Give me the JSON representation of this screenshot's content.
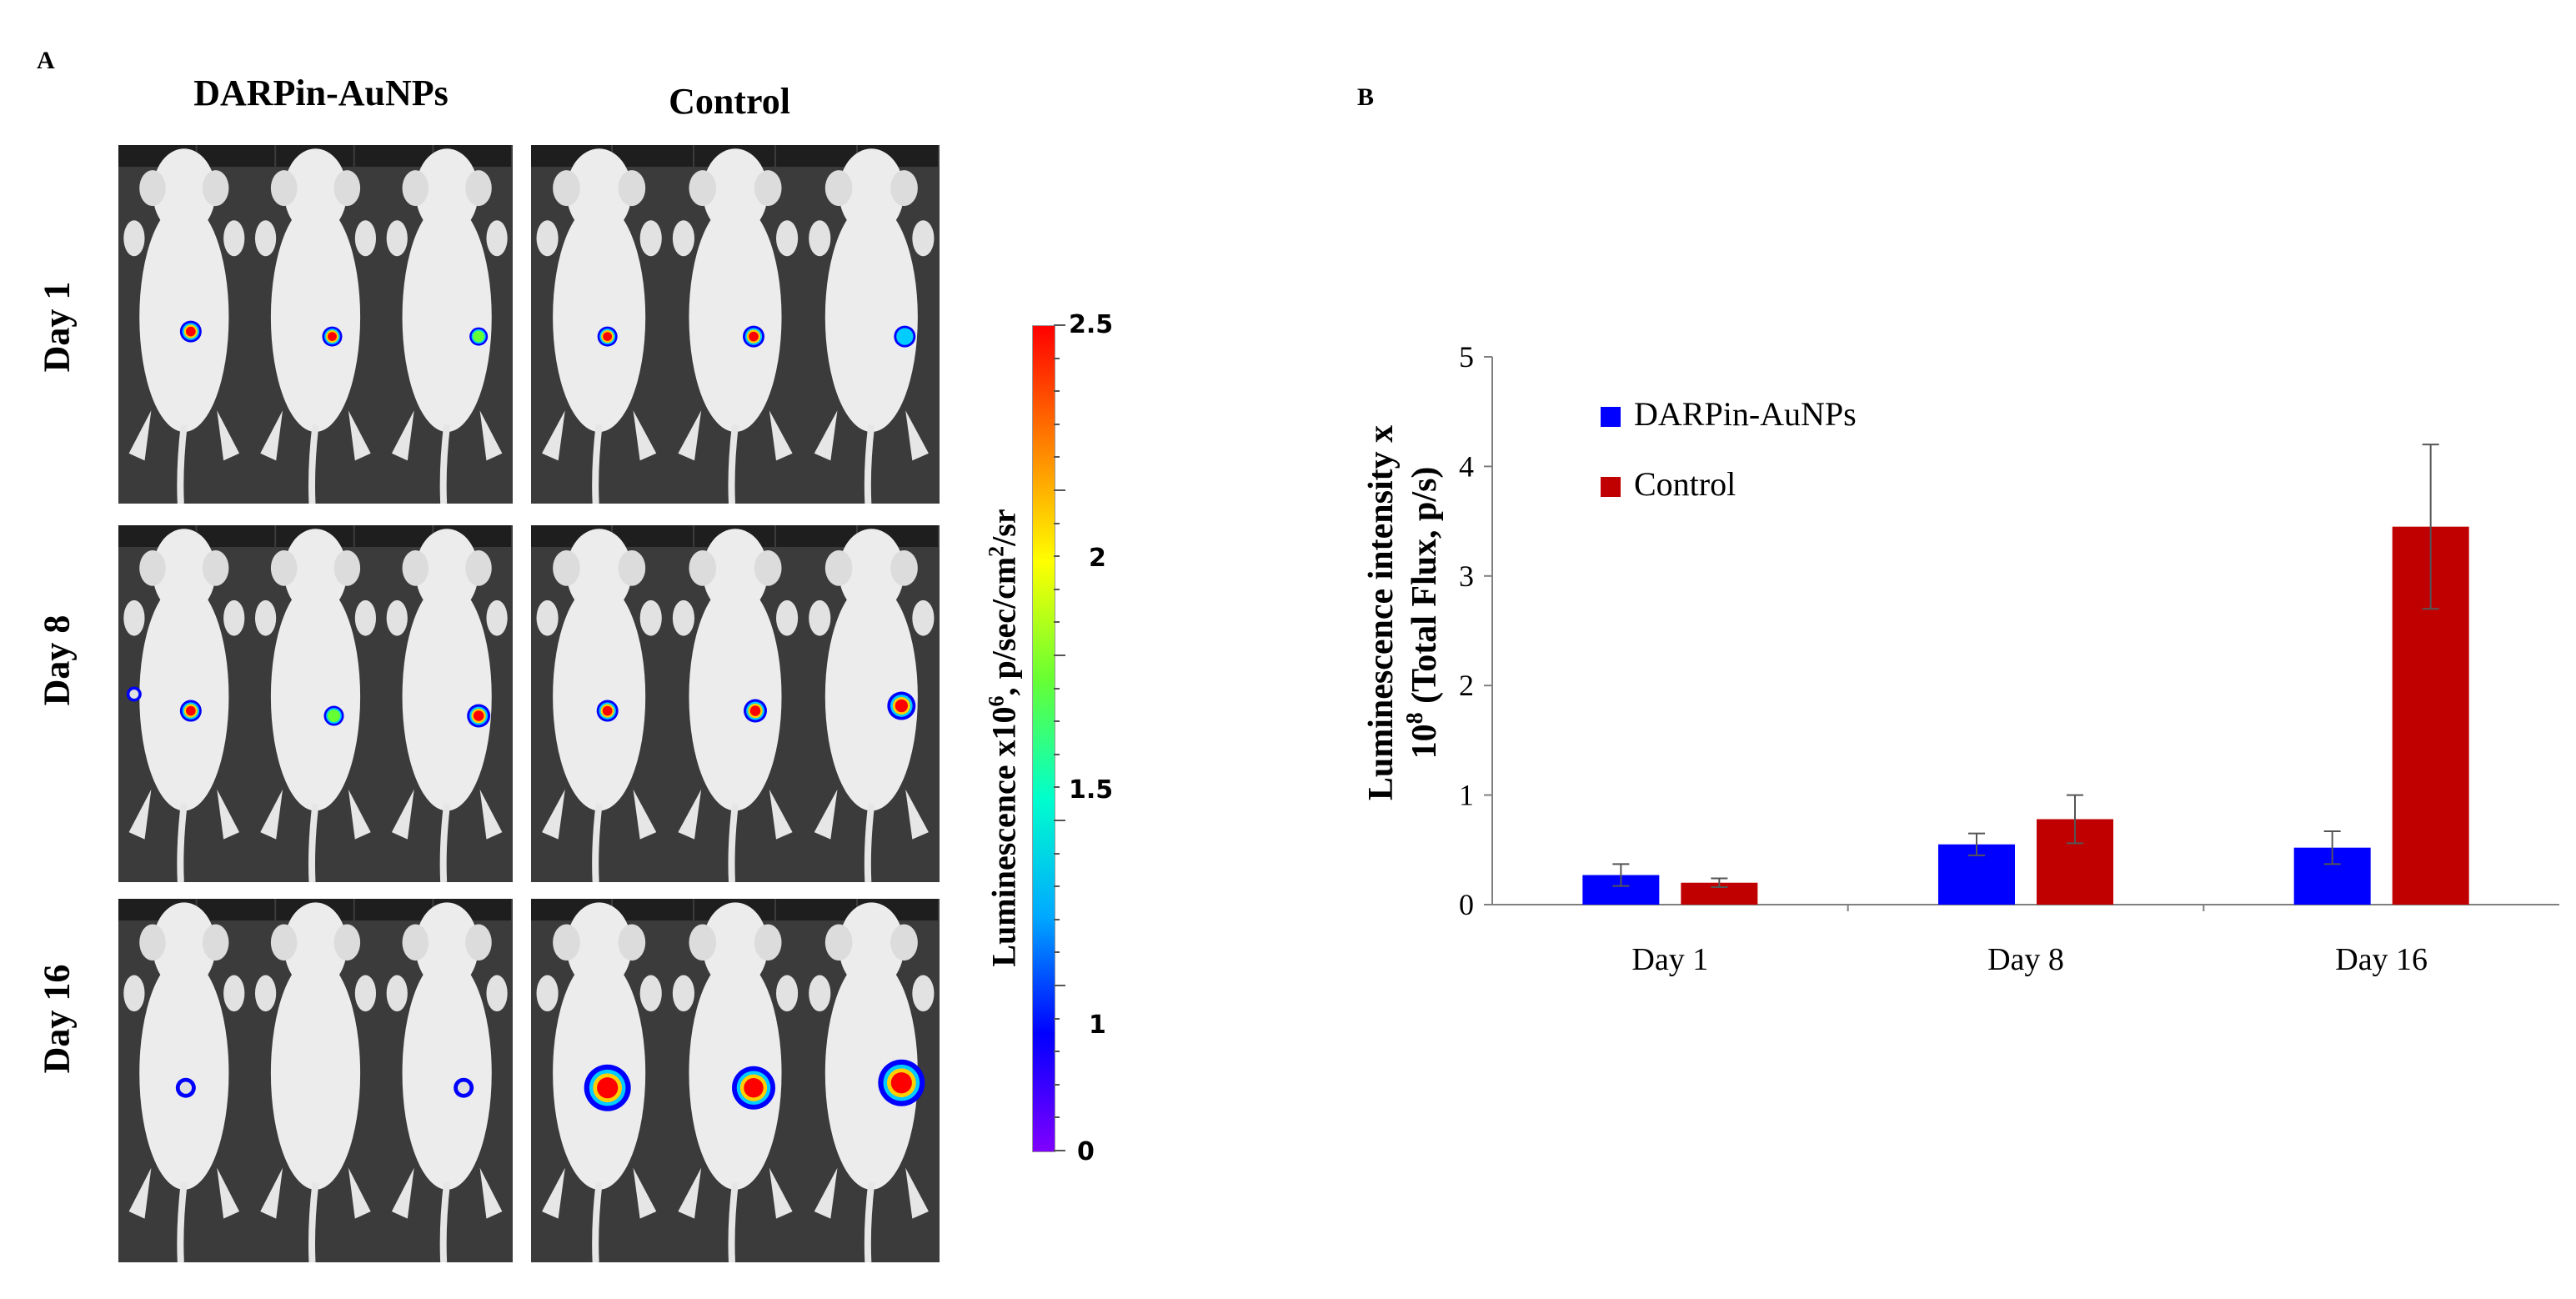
{
  "panel_a": {
    "letter": "A",
    "column_headers": [
      "DARPin-AuNPs",
      "Control"
    ],
    "row_labels": [
      "Day 1",
      "Day 8",
      "Day 16"
    ],
    "colorbar": {
      "title": "Luminescence x10⁶, p/sec/cm²/sr",
      "ticks": [
        "2.5",
        "2",
        "1.5",
        "1",
        "0"
      ],
      "colors": [
        "#ff0000",
        "#ff8000",
        "#ffff00",
        "#66ff33",
        "#00ffcc",
        "#00aaff",
        "#0000ff",
        "#8000ff"
      ]
    },
    "images": {
      "mouse_color": "#ececec",
      "background_color": "#3a3a3a"
    }
  },
  "panel_b": {
    "letter": "B"
  },
  "chart_data": {
    "type": "bar",
    "title": "",
    "xlabel": "",
    "ylabel": "Luminescence intensity x 10⁸ (Total Flux, p/s)",
    "ylabel_line1": "Luminescence intensity x",
    "ylabel_line2_base": "10",
    "ylabel_line2_sup": "8",
    "ylabel_line2_rest": " (Total Flux, p/s)",
    "categories": [
      "Day 1",
      "Day 8",
      "Day 16"
    ],
    "ylim": [
      0,
      5
    ],
    "yticks": [
      0,
      1,
      2,
      3,
      4,
      5
    ],
    "legend_position": "top-left",
    "series": [
      {
        "name": "DARPin-AuNPs",
        "color": "#0000ff",
        "values": [
          0.27,
          0.55,
          0.52
        ],
        "errors": [
          0.1,
          0.1,
          0.15
        ]
      },
      {
        "name": "Control",
        "color": "#c00000",
        "values": [
          0.2,
          0.78,
          3.45
        ],
        "errors": [
          0.04,
          0.22,
          0.75
        ]
      }
    ]
  }
}
